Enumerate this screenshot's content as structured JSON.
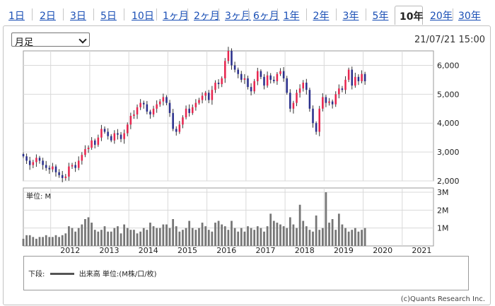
{
  "tabs": [
    {
      "label": "1日",
      "active": false
    },
    {
      "label": "2日",
      "active": false
    },
    {
      "label": "3日",
      "active": false
    },
    {
      "label": "5日",
      "active": false
    },
    {
      "label": "10日",
      "active": false
    },
    {
      "label": "1ヶ月",
      "active": false
    },
    {
      "label": "2ヶ月",
      "active": false
    },
    {
      "label": "3ヶ月",
      "active": false
    },
    {
      "label": "6ヶ月",
      "active": false
    },
    {
      "label": "1年",
      "active": false
    },
    {
      "label": "2年",
      "active": false
    },
    {
      "label": "3年",
      "active": false
    },
    {
      "label": "5年",
      "active": false
    },
    {
      "label": "10年",
      "active": true
    },
    {
      "label": "20年",
      "active": false
    },
    {
      "label": "30年",
      "active": false
    }
  ],
  "period_select": {
    "value": "月足"
  },
  "timestamp": "21/07/21 15:00",
  "colors": {
    "up": "#e8264f",
    "down": "#2a2f8c",
    "volume": "#767676",
    "grid": "#d9d9d9",
    "frame": "#9a9a9a"
  },
  "chart_data": [
    {
      "type": "candlestick",
      "name": "price",
      "x_labels": [
        "2012",
        "2013",
        "2014",
        "2015",
        "2016",
        "2017",
        "2018",
        "2019",
        "2020",
        "2021"
      ],
      "y_ticks": [
        "2,000",
        "3,000",
        "4,000",
        "5,000",
        "6,000"
      ],
      "ylim": [
        2000,
        6500
      ],
      "grid": true,
      "closes": [
        2850,
        2700,
        2550,
        2650,
        2800,
        2700,
        2550,
        2450,
        2400,
        2500,
        2300,
        2200,
        2100,
        2150,
        2500,
        2550,
        2450,
        2700,
        2900,
        3100,
        3150,
        3400,
        3250,
        3500,
        3800,
        3700,
        3550,
        3400,
        3650,
        3600,
        3450,
        3650,
        3950,
        4250,
        4300,
        4550,
        4700,
        4650,
        4400,
        4300,
        4500,
        4650,
        4750,
        4900,
        4700,
        4350,
        3800,
        3700,
        3950,
        4200,
        4500,
        4350,
        4550,
        4700,
        4800,
        4950,
        5050,
        4800,
        5150,
        5400,
        5350,
        5550,
        6150,
        6500,
        6000,
        5850,
        5700,
        5500,
        5550,
        5250,
        5100,
        5450,
        5800,
        5600,
        5300,
        5650,
        5500,
        5450,
        5700,
        5800,
        5550,
        5050,
        4500,
        4700,
        5050,
        5200,
        5400,
        5150,
        4500,
        4000,
        3700,
        4500,
        4900,
        4700,
        4750,
        4650,
        5000,
        5200,
        5150,
        5500,
        5850,
        5300,
        5600,
        5450,
        5700,
        5450
      ],
      "x_start": 2011.3,
      "x_step": 0.0833
    },
    {
      "type": "bar",
      "name": "volume",
      "unit": "単位: M",
      "y_ticks": [
        "1M",
        "2M",
        "3M"
      ],
      "ylim": [
        0,
        3
      ],
      "values": [
        0.4,
        0.6,
        0.6,
        0.5,
        0.4,
        0.5,
        0.5,
        0.6,
        0.5,
        0.5,
        0.6,
        0.5,
        0.6,
        0.7,
        1.1,
        1.0,
        0.8,
        1.0,
        1.2,
        1.5,
        1.6,
        1.3,
        0.9,
        0.8,
        0.9,
        1.1,
        0.8,
        0.8,
        1.0,
        1.1,
        0.7,
        1.2,
        1.0,
        0.9,
        0.9,
        0.7,
        0.8,
        1.0,
        0.9,
        1.3,
        1.1,
        1.0,
        1.0,
        1.2,
        1.2,
        1.0,
        1.5,
        1.1,
        0.8,
        0.9,
        1.0,
        1.4,
        1.0,
        0.9,
        1.0,
        1.3,
        1.1,
        0.9,
        0.8,
        1.3,
        1.4,
        1.2,
        1.1,
        0.9,
        1.4,
        1.0,
        0.8,
        1.0,
        0.8,
        1.1,
        1.0,
        0.9,
        1.1,
        1.0,
        0.8,
        1.1,
        1.8,
        1.4,
        1.3,
        1.2,
        1.1,
        1.0,
        1.6,
        1.2,
        1.0,
        2.3,
        1.4,
        1.1,
        0.9,
        0.8,
        1.7,
        0.9,
        1.0,
        3.0,
        1.3,
        1.5,
        0.9,
        1.8,
        1.2,
        1.0,
        0.8,
        0.9,
        1.0,
        0.8,
        0.9,
        1.0
      ]
    }
  ],
  "legend": {
    "prefix": "下段:",
    "text": "出来高 単位:(M株/口/枚)"
  },
  "copyright": "(c)Quants Research Inc."
}
